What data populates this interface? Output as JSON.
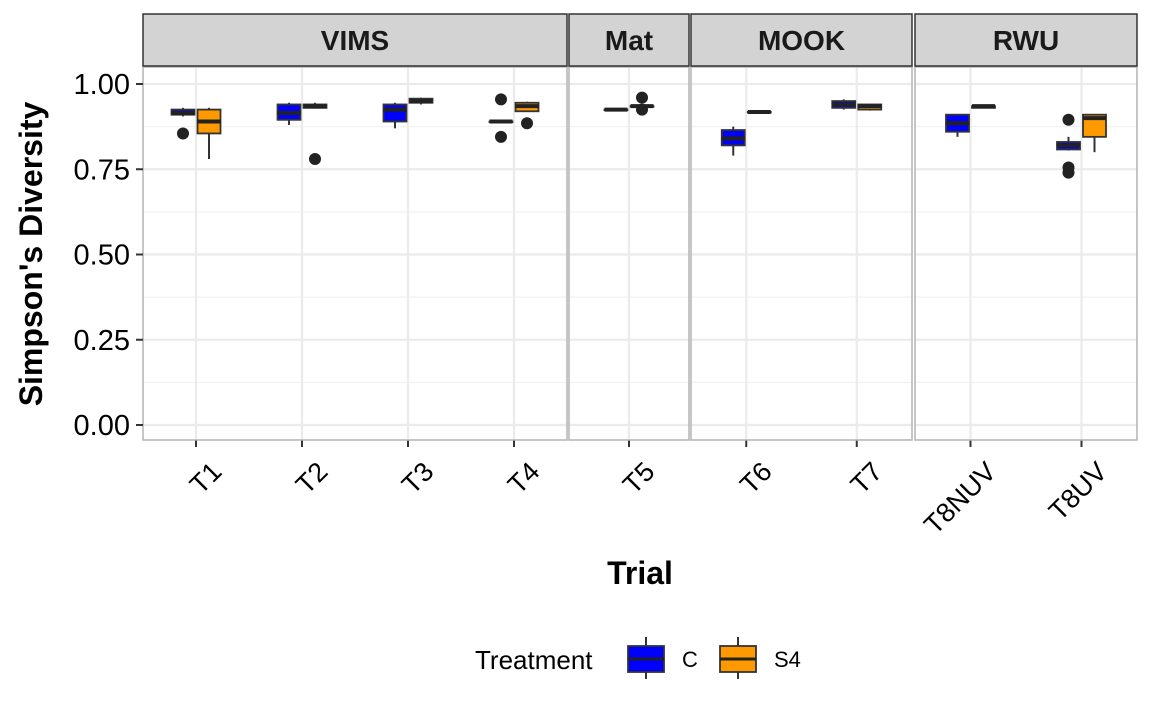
{
  "chart_data": {
    "type": "boxplot",
    "xlabel": "Trial",
    "ylabel": "Simpson's Diversity",
    "ylim": [
      0,
      1.05
    ],
    "yticks": [
      "0.00",
      "0.25",
      "0.50",
      "0.75",
      "1.00"
    ],
    "grid": true,
    "legend": {
      "title": "Treatment",
      "position": "bottom",
      "entries": [
        {
          "name": "C",
          "color": "#0000ff"
        },
        {
          "name": "S4",
          "color": "#ff9900"
        }
      ]
    },
    "facets": [
      {
        "label": "VIMS",
        "trials": [
          {
            "trial": "T1",
            "C": {
              "min": 0.905,
              "q1": 0.91,
              "median": 0.915,
              "q3": 0.925,
              "max": 0.93,
              "outliers": [
                0.855
              ]
            },
            "S4": {
              "min": 0.78,
              "q1": 0.855,
              "median": 0.89,
              "q3": 0.925,
              "max": 0.93,
              "outliers": []
            }
          },
          {
            "trial": "T2",
            "C": {
              "min": 0.88,
              "q1": 0.895,
              "median": 0.915,
              "q3": 0.94,
              "max": 0.945,
              "outliers": []
            },
            "S4": {
              "min": 0.928,
              "q1": 0.93,
              "median": 0.935,
              "q3": 0.94,
              "max": 0.945,
              "outliers": [
                0.78
              ]
            }
          },
          {
            "trial": "T3",
            "C": {
              "min": 0.87,
              "q1": 0.89,
              "median": 0.925,
              "q3": 0.94,
              "max": 0.945,
              "outliers": []
            },
            "S4": {
              "min": 0.94,
              "q1": 0.945,
              "median": 0.95,
              "q3": 0.957,
              "max": 0.96,
              "outliers": []
            }
          },
          {
            "trial": "T4",
            "C": {
              "min": 0.89,
              "q1": 0.89,
              "median": 0.89,
              "q3": 0.89,
              "max": 0.89,
              "outliers": [
                0.955,
                0.845
              ]
            },
            "S4": {
              "min": 0.92,
              "q1": 0.92,
              "median": 0.935,
              "q3": 0.945,
              "max": 0.948,
              "outliers": [
                0.885
              ]
            }
          }
        ]
      },
      {
        "label": "Mat",
        "trials": [
          {
            "trial": "T5",
            "C": {
              "min": 0.925,
              "q1": 0.925,
              "median": 0.925,
              "q3": 0.925,
              "max": 0.925,
              "outliers": []
            },
            "S4": {
              "min": 0.935,
              "q1": 0.935,
              "median": 0.935,
              "q3": 0.935,
              "max": 0.935,
              "outliers": [
                0.96,
                0.925
              ]
            }
          }
        ]
      },
      {
        "label": "MOOK",
        "trials": [
          {
            "trial": "T6",
            "C": {
              "min": 0.79,
              "q1": 0.82,
              "median": 0.84,
              "q3": 0.865,
              "max": 0.875,
              "outliers": []
            },
            "S4": {
              "min": 0.918,
              "q1": 0.918,
              "median": 0.918,
              "q3": 0.918,
              "max": 0.918,
              "outliers": []
            }
          },
          {
            "trial": "T7",
            "C": {
              "min": 0.925,
              "q1": 0.93,
              "median": 0.94,
              "q3": 0.95,
              "max": 0.955,
              "outliers": []
            },
            "S4": {
              "min": 0.922,
              "q1": 0.925,
              "median": 0.935,
              "q3": 0.94,
              "max": 0.942,
              "outliers": []
            }
          }
        ]
      },
      {
        "label": "RWU",
        "trials": [
          {
            "trial": "T8NUV",
            "C": {
              "min": 0.845,
              "q1": 0.86,
              "median": 0.885,
              "q3": 0.91,
              "max": 0.912,
              "outliers": []
            },
            "S4": {
              "min": 0.93,
              "q1": 0.93,
              "median": 0.935,
              "q3": 0.935,
              "max": 0.935,
              "outliers": []
            }
          },
          {
            "trial": "T8UV",
            "C": {
              "min": 0.805,
              "q1": 0.808,
              "median": 0.82,
              "q3": 0.83,
              "max": 0.845,
              "outliers": [
                0.755,
                0.74,
                0.895
              ]
            },
            "S4": {
              "min": 0.8,
              "q1": 0.845,
              "median": 0.9,
              "q3": 0.91,
              "max": 0.912,
              "outliers": []
            }
          }
        ]
      }
    ]
  }
}
